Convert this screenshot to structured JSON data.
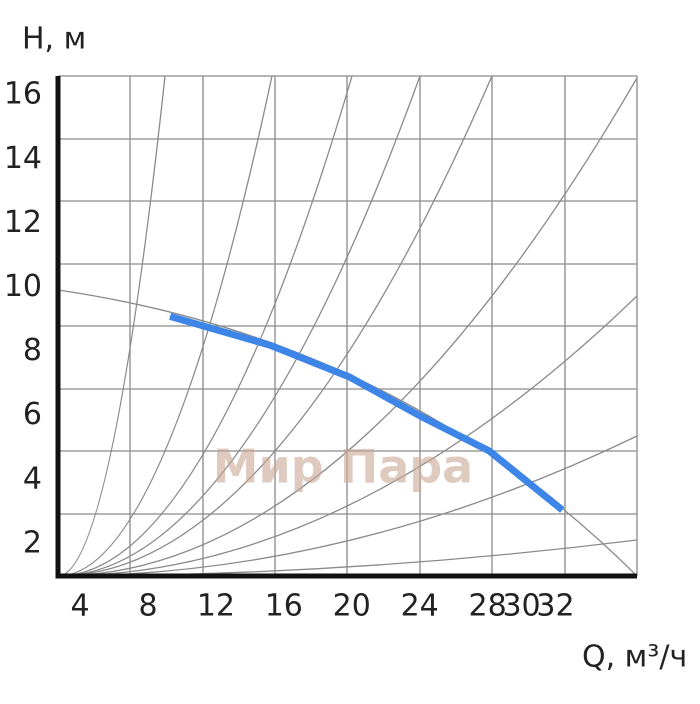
{
  "chart_data": {
    "type": "line",
    "y_label": "H, м",
    "x_label": "Q, м³/ч",
    "watermark": "Мир Пара",
    "xlim": [
      2.7,
      36.8
    ],
    "xticks": [
      4,
      8,
      12,
      16,
      20,
      24,
      28,
      30,
      32
    ],
    "ylim": [
      1,
      16.6
    ],
    "yticks": [
      2,
      4,
      6,
      8,
      10,
      12,
      14,
      16
    ],
    "series": [
      {
        "color": "#3d86e8",
        "x": [
          9.3,
          15.2,
          19.9,
          24,
          28.1,
          32.4
        ],
        "values": [
          9.1,
          8.2,
          7.2,
          6.0,
          4.9,
          3.06
        ]
      }
    ]
  }
}
